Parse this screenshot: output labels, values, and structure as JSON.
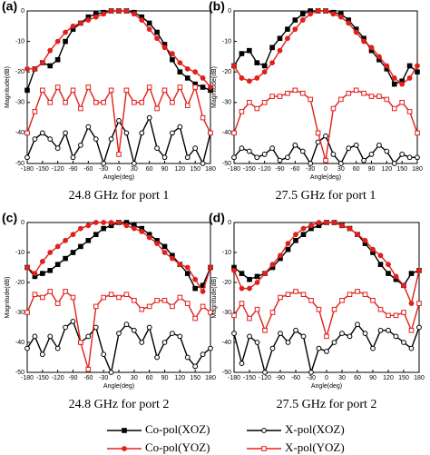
{
  "chart_data": [
    {
      "type": "line",
      "panel_label": "(a)",
      "caption": "24.8 GHz for port 1",
      "xlabel": "Angle(deg)",
      "ylabel": "Magnitude(dB)",
      "xlim": [
        -180,
        180
      ],
      "xticks": [
        -180,
        -150,
        -120,
        -90,
        -60,
        -30,
        0,
        30,
        60,
        90,
        120,
        150,
        180
      ],
      "ylim": [
        -50,
        0
      ],
      "yticks": [
        -50,
        -40,
        -30,
        -20,
        -10,
        0
      ],
      "x": [
        -180,
        -165,
        -150,
        -135,
        -120,
        -105,
        -90,
        -75,
        -60,
        -45,
        -30,
        -15,
        0,
        15,
        30,
        45,
        60,
        75,
        90,
        105,
        120,
        135,
        150,
        165,
        180
      ],
      "series": [
        {
          "name": "Co-pol(XOZ)",
          "color": "#000000",
          "marker": "square",
          "marker_filled": true,
          "values": [
            -26,
            -19,
            -17,
            -18,
            -16,
            -10,
            -6,
            -4,
            -2,
            -1,
            -0.5,
            0,
            0,
            0,
            -0.5,
            -2,
            -4,
            -7,
            -11,
            -16,
            -20,
            -22,
            -24,
            -25,
            -26
          ]
        },
        {
          "name": "X-pol(XOZ)",
          "color": "#000000",
          "marker": "circle",
          "marker_filled": false,
          "values": [
            -48,
            -42,
            -40,
            -42,
            -45,
            -40,
            -48,
            -44,
            -38,
            -42,
            -50,
            -42,
            -36,
            -40,
            -50,
            -40,
            -35,
            -45,
            -48,
            -40,
            -38,
            -48,
            -45,
            -50,
            -40
          ]
        },
        {
          "name": "Co-pol(YOZ)",
          "color": "#e0201b",
          "marker": "circle",
          "marker_filled": true,
          "values": [
            -19,
            -19,
            -17,
            -13,
            -10,
            -7,
            -5,
            -4,
            -3,
            -2,
            -1,
            0,
            0,
            0,
            -1,
            -3,
            -6,
            -9,
            -12,
            -14,
            -17,
            -19,
            -20,
            -22,
            -25
          ]
        },
        {
          "name": "X-pol(YOZ)",
          "color": "#e0201b",
          "marker": "square",
          "marker_filled": false,
          "values": [
            -40,
            -33,
            -26,
            -30,
            -25,
            -30,
            -26,
            -32,
            -25,
            -30,
            -30,
            -26,
            -47,
            -26,
            -30,
            -30,
            -25,
            -32,
            -26,
            -30,
            -25,
            -31,
            -25,
            -35,
            -40
          ]
        }
      ]
    },
    {
      "type": "line",
      "panel_label": "(b)",
      "caption": "27.5 GHz for port 1",
      "xlabel": "Angle(deg)",
      "ylabel": "Magnitude(dB)",
      "xlim": [
        -180,
        180
      ],
      "xticks": [
        -180,
        -150,
        -120,
        -90,
        -60,
        -30,
        0,
        30,
        60,
        90,
        120,
        150,
        180
      ],
      "ylim": [
        -50,
        0
      ],
      "yticks": [
        -50,
        -40,
        -30,
        -20,
        -10,
        0
      ],
      "x": [
        -180,
        -165,
        -150,
        -135,
        -120,
        -105,
        -90,
        -75,
        -60,
        -45,
        -30,
        -15,
        0,
        15,
        30,
        45,
        60,
        75,
        90,
        105,
        120,
        135,
        150,
        165,
        180
      ],
      "series": [
        {
          "color": "#000000",
          "marker": "square",
          "marker_filled": true,
          "values": [
            -18,
            -14,
            -13,
            -17,
            -18,
            -12,
            -9,
            -6,
            -3,
            -1,
            0,
            0,
            0,
            -0.5,
            -1,
            -3,
            -6,
            -9,
            -13,
            -16,
            -19,
            -24,
            -23,
            -18,
            -20
          ]
        },
        {
          "color": "#000000",
          "marker": "circle",
          "marker_filled": false,
          "values": [
            -48,
            -45,
            -46,
            -48,
            -47,
            -45,
            -49,
            -48,
            -44,
            -46,
            -50,
            -43,
            -41,
            -47,
            -50,
            -45,
            -44,
            -49,
            -47,
            -44,
            -46,
            -50,
            -47,
            -48,
            -48
          ]
        },
        {
          "color": "#e0201b",
          "marker": "circle",
          "marker_filled": true,
          "values": [
            -18,
            -22,
            -23,
            -22,
            -20,
            -17,
            -13,
            -9,
            -6,
            -3,
            -1,
            0,
            0,
            -1,
            -2,
            -4,
            -7,
            -10,
            -12,
            -15,
            -18,
            -22,
            -24,
            -22,
            -18
          ]
        },
        {
          "color": "#e0201b",
          "marker": "square",
          "marker_filled": false,
          "values": [
            -40,
            -33,
            -30,
            -32,
            -30,
            -28,
            -28,
            -27,
            -26,
            -27,
            -29,
            -40,
            -49,
            -32,
            -29,
            -27,
            -26,
            -27,
            -28,
            -28,
            -29,
            -32,
            -30,
            -33,
            -40
          ]
        }
      ]
    },
    {
      "type": "line",
      "panel_label": "(c)",
      "caption": "24.8 GHz for port 2",
      "xlabel": "Angle(deg)",
      "ylabel": "Magnitude(dB)",
      "xlim": [
        -180,
        180
      ],
      "xticks": [
        -180,
        -150,
        -120,
        -90,
        -60,
        -30,
        0,
        30,
        60,
        90,
        120,
        150,
        180
      ],
      "ylim": [
        -50,
        0
      ],
      "yticks": [
        -50,
        -40,
        -30,
        -20,
        -10,
        0
      ],
      "x": [
        -180,
        -165,
        -150,
        -135,
        -120,
        -105,
        -90,
        -75,
        -60,
        -45,
        -30,
        -15,
        0,
        15,
        30,
        45,
        60,
        75,
        90,
        105,
        120,
        135,
        150,
        165,
        180
      ],
      "series": [
        {
          "color": "#000000",
          "marker": "square",
          "marker_filled": true,
          "values": [
            -15,
            -18,
            -17,
            -16,
            -14,
            -12,
            -10,
            -8,
            -6,
            -4,
            -2,
            -1,
            0,
            0,
            -1,
            -2,
            -4,
            -6,
            -8,
            -11,
            -14,
            -17,
            -22,
            -21,
            -15
          ]
        },
        {
          "color": "#000000",
          "marker": "circle",
          "marker_filled": false,
          "values": [
            -42,
            -38,
            -44,
            -38,
            -42,
            -35,
            -33,
            -40,
            -38,
            -35,
            -44,
            -50,
            -37,
            -34,
            -36,
            -40,
            -35,
            -45,
            -40,
            -37,
            -38,
            -45,
            -48,
            -44,
            -42
          ]
        },
        {
          "color": "#e0201b",
          "marker": "circle",
          "marker_filled": true,
          "values": [
            -15,
            -17,
            -13,
            -10,
            -8,
            -6,
            -4,
            -2,
            -1,
            0,
            0,
            0,
            0,
            -1,
            -2,
            -3,
            -5,
            -7,
            -10,
            -12,
            -14,
            -15,
            -19,
            -23,
            -15
          ]
        },
        {
          "color": "#e0201b",
          "marker": "square",
          "marker_filled": false,
          "values": [
            -30,
            -24,
            -25,
            -23,
            -27,
            -23,
            -25,
            -40,
            -49,
            -28,
            -25,
            -24,
            -25,
            -24,
            -26,
            -29,
            -28,
            -26,
            -26,
            -28,
            -25,
            -27,
            -32,
            -28,
            -30
          ]
        }
      ]
    },
    {
      "type": "line",
      "panel_label": "(d)",
      "caption": "27.5 GHz for port 2",
      "xlabel": "Angle(deg)",
      "ylabel": "Magnitude(dB)",
      "xlim": [
        -180,
        180
      ],
      "xticks": [
        -180,
        -150,
        -120,
        -90,
        -60,
        -30,
        0,
        30,
        60,
        90,
        120,
        150,
        180
      ],
      "ylim": [
        -50,
        0
      ],
      "yticks": [
        -50,
        -40,
        -30,
        -20,
        -10,
        0
      ],
      "x": [
        -180,
        -165,
        -150,
        -135,
        -120,
        -105,
        -90,
        -75,
        -60,
        -45,
        -30,
        -15,
        0,
        15,
        30,
        45,
        60,
        75,
        90,
        105,
        120,
        135,
        150,
        165,
        180
      ],
      "series": [
        {
          "color": "#000000",
          "marker": "square",
          "marker_filled": true,
          "values": [
            -15,
            -17,
            -19,
            -18,
            -17,
            -15,
            -12,
            -9,
            -6,
            -4,
            -2,
            -1,
            0,
            0,
            -1,
            -2,
            -4,
            -7,
            -10,
            -14,
            -17,
            -19,
            -21,
            -17,
            -16
          ]
        },
        {
          "color": "#000000",
          "marker": "circle",
          "marker_filled": false,
          "values": [
            -37,
            -47,
            -38,
            -40,
            -50,
            -42,
            -37,
            -40,
            -36,
            -38,
            -50,
            -42,
            -43,
            -40,
            -37,
            -38,
            -34,
            -37,
            -42,
            -36,
            -36,
            -38,
            -40,
            -42,
            -35
          ]
        },
        {
          "color": "#e0201b",
          "marker": "circle",
          "marker_filled": true,
          "values": [
            -16,
            -22,
            -22,
            -20,
            -17,
            -14,
            -11,
            -7,
            -4,
            -2,
            -1,
            0,
            0,
            0,
            -1,
            -2,
            -4,
            -6,
            -9,
            -11,
            -14,
            -18,
            -21,
            -27,
            -16
          ]
        },
        {
          "color": "#e0201b",
          "marker": "square",
          "marker_filled": false,
          "values": [
            -31,
            -27,
            -32,
            -29,
            -36,
            -30,
            -25,
            -24,
            -23,
            -24,
            -26,
            -29,
            -38,
            -29,
            -26,
            -24,
            -23,
            -24,
            -26,
            -29,
            -31,
            -31,
            -30,
            -36,
            -27
          ]
        }
      ]
    }
  ]
}
